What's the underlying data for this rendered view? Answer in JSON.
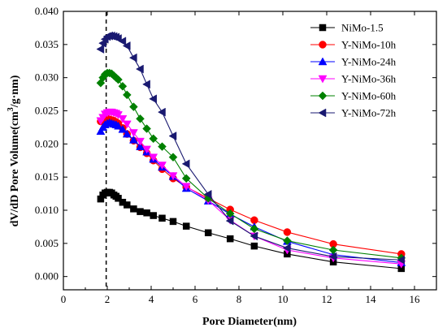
{
  "chart_data": {
    "type": "line",
    "xlabel": "Pore Diameter(nm)",
    "ylabel_parts": [
      "dV/dD Pore Volume(cm",
      "3",
      "/g·nm)"
    ],
    "xlim": [
      0,
      17
    ],
    "ylim": [
      -0.002,
      0.04
    ],
    "xticks": [
      "0",
      "2",
      "4",
      "6",
      "8",
      "10",
      "12",
      "14",
      "16"
    ],
    "yticks": [
      "0.000",
      "0.005",
      "0.010",
      "0.015",
      "0.020",
      "0.025",
      "0.030",
      "0.035",
      "0.040"
    ],
    "reference_line_x": 1.95,
    "legend_position": "top-right",
    "grid": false,
    "series": [
      {
        "name": "NiMo-1.5",
        "color": "#000000",
        "marker": "square",
        "x": [
          1.7,
          1.8,
          1.9,
          2.0,
          2.1,
          2.2,
          2.3,
          2.4,
          2.5,
          2.7,
          2.9,
          3.2,
          3.5,
          3.8,
          4.1,
          4.5,
          5.0,
          5.6,
          6.6,
          7.6,
          8.7,
          10.2,
          12.3,
          15.4
        ],
        "y": [
          0.0117,
          0.0123,
          0.0126,
          0.0127,
          0.0127,
          0.0126,
          0.0123,
          0.0121,
          0.0118,
          0.0112,
          0.0108,
          0.0102,
          0.0098,
          0.0096,
          0.0092,
          0.0088,
          0.0083,
          0.0076,
          0.0066,
          0.0057,
          0.0046,
          0.0034,
          0.0022,
          0.0012
        ]
      },
      {
        "name": "Y-NiMo-10h",
        "color": "#ff0000",
        "marker": "circle",
        "x": [
          1.7,
          1.8,
          1.9,
          2.0,
          2.1,
          2.2,
          2.3,
          2.4,
          2.5,
          2.7,
          2.9,
          3.2,
          3.5,
          3.8,
          4.1,
          4.5,
          5.0,
          5.6,
          6.6,
          7.6,
          8.7,
          10.2,
          12.3,
          15.4
        ],
        "y": [
          0.0234,
          0.0236,
          0.0238,
          0.0238,
          0.0237,
          0.0236,
          0.0235,
          0.0233,
          0.0231,
          0.0224,
          0.0215,
          0.0205,
          0.0195,
          0.0186,
          0.0175,
          0.0162,
          0.0148,
          0.0135,
          0.0118,
          0.0101,
          0.0085,
          0.0067,
          0.0049,
          0.0034
        ]
      },
      {
        "name": "Y-NiMo-24h",
        "color": "#0000ff",
        "marker": "triangle-up",
        "x": [
          1.7,
          1.8,
          1.9,
          2.0,
          2.1,
          2.2,
          2.3,
          2.4,
          2.5,
          2.7,
          2.9,
          3.2,
          3.5,
          3.8,
          4.1,
          4.5,
          5.0,
          5.6,
          6.6,
          7.6,
          8.7,
          10.2,
          12.3,
          15.4
        ],
        "y": [
          0.0219,
          0.0225,
          0.0229,
          0.0231,
          0.0232,
          0.0231,
          0.023,
          0.0229,
          0.0227,
          0.0222,
          0.0215,
          0.0206,
          0.0196,
          0.0188,
          0.0177,
          0.0165,
          0.0151,
          0.0133,
          0.0114,
          0.0094,
          0.0075,
          0.0053,
          0.0033,
          0.0021
        ]
      },
      {
        "name": "Y-NiMo-36h",
        "color": "#ff00ff",
        "marker": "triangle-down",
        "x": [
          1.7,
          1.8,
          1.9,
          2.0,
          2.1,
          2.2,
          2.3,
          2.4,
          2.5,
          2.7,
          2.9,
          3.2,
          3.5,
          3.8,
          4.1,
          4.5,
          5.0,
          5.6,
          6.6,
          7.6,
          8.7,
          10.2,
          12.3,
          15.4
        ],
        "y": [
          0.0235,
          0.024,
          0.0245,
          0.0247,
          0.0248,
          0.0248,
          0.0247,
          0.0246,
          0.0244,
          0.0238,
          0.023,
          0.0217,
          0.0204,
          0.0192,
          0.018,
          0.0168,
          0.0152,
          0.0136,
          0.0115,
          0.0085,
          0.0061,
          0.004,
          0.0028,
          0.0019
        ]
      },
      {
        "name": "Y-NiMo-60h",
        "color": "#008000",
        "marker": "diamond",
        "x": [
          1.7,
          1.8,
          1.9,
          2.0,
          2.1,
          2.2,
          2.3,
          2.4,
          2.5,
          2.7,
          2.9,
          3.2,
          3.5,
          3.8,
          4.1,
          4.5,
          5.0,
          5.6,
          6.6,
          7.6,
          8.7,
          10.2,
          12.3,
          15.4
        ],
        "y": [
          0.0292,
          0.03,
          0.0305,
          0.0307,
          0.0307,
          0.0306,
          0.0303,
          0.03,
          0.0297,
          0.0287,
          0.0274,
          0.0256,
          0.0238,
          0.0223,
          0.0208,
          0.0196,
          0.018,
          0.0148,
          0.0118,
          0.0095,
          0.0072,
          0.0054,
          0.004,
          0.0028
        ]
      },
      {
        "name": "Y-NiMo-72h",
        "color": "#191970",
        "marker": "triangle-left",
        "x": [
          1.7,
          1.8,
          1.9,
          2.0,
          2.1,
          2.2,
          2.3,
          2.4,
          2.5,
          2.7,
          2.9,
          3.2,
          3.5,
          3.8,
          4.1,
          4.5,
          5.0,
          5.6,
          6.6,
          7.6,
          8.7,
          10.2,
          12.3,
          15.4
        ],
        "y": [
          0.0343,
          0.0352,
          0.0358,
          0.0362,
          0.0363,
          0.0363,
          0.0362,
          0.0361,
          0.0359,
          0.0355,
          0.0348,
          0.033,
          0.0313,
          0.029,
          0.0268,
          0.0248,
          0.0212,
          0.017,
          0.0124,
          0.0084,
          0.0061,
          0.0043,
          0.003,
          0.0025
        ]
      }
    ]
  }
}
